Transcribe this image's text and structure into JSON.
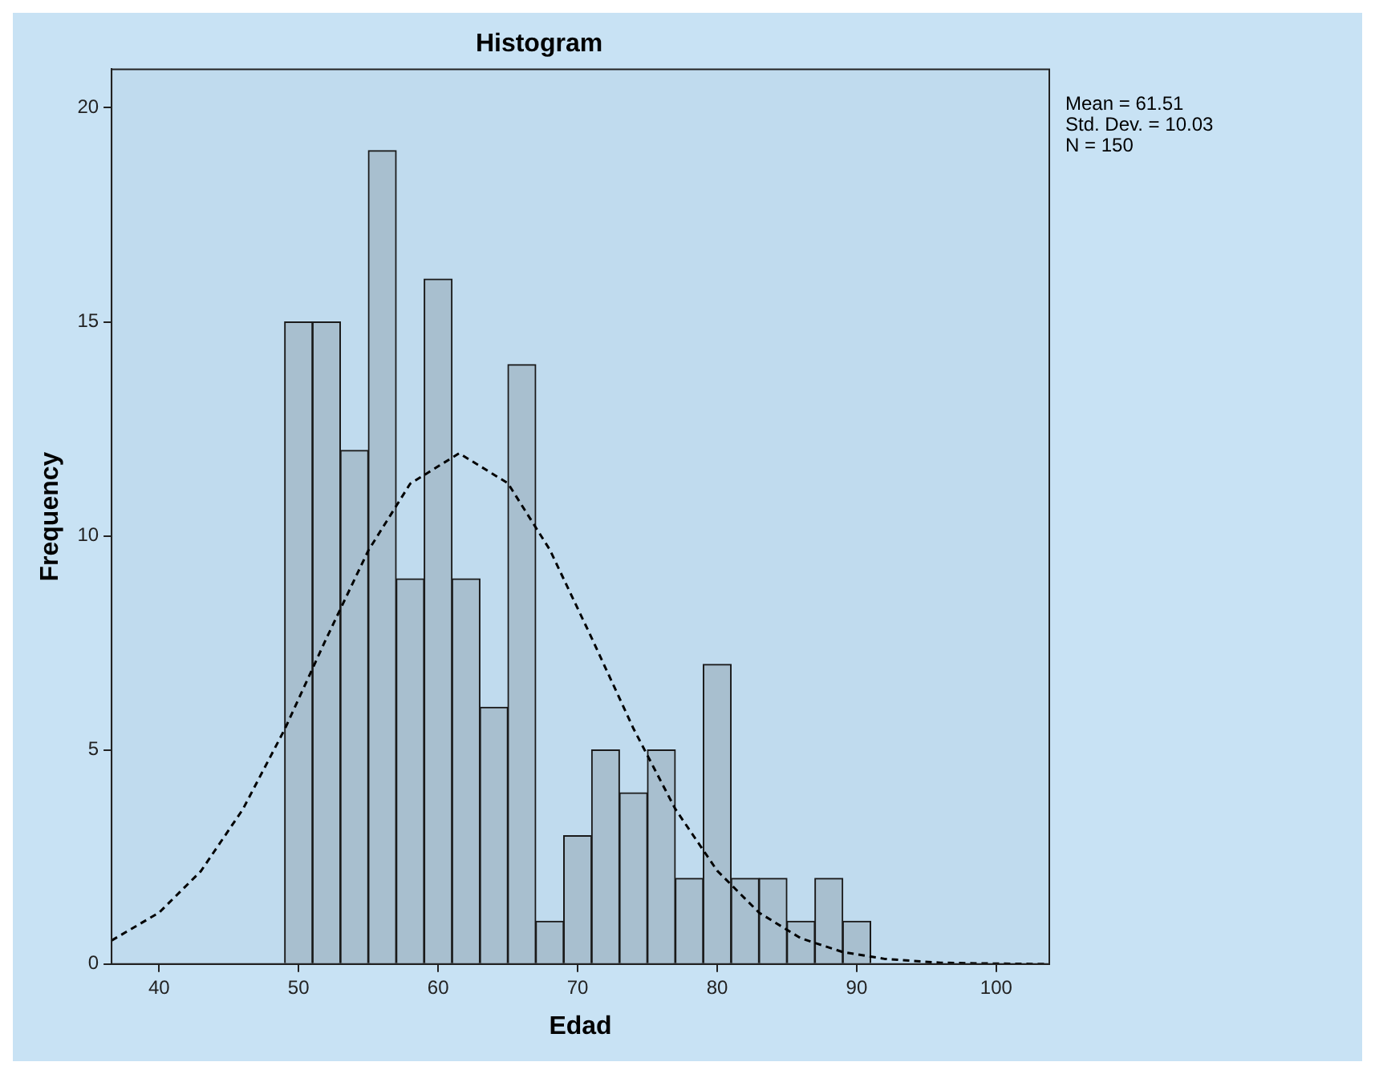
{
  "chart_data": {
    "type": "histogram",
    "title": "Histogram",
    "xlabel": "Edad",
    "ylabel": "Frequency",
    "bins": [
      49,
      51,
      53,
      55,
      57,
      59,
      61,
      63,
      65,
      67,
      69,
      71,
      73,
      75,
      77,
      79,
      81,
      83,
      85,
      87,
      89,
      91
    ],
    "values": [
      15,
      15,
      12,
      19,
      9,
      16,
      9,
      6,
      14,
      1,
      3,
      5,
      4,
      5,
      2,
      7,
      2,
      2,
      1,
      2,
      1
    ],
    "color": "#a8bfcf",
    "xlim": [
      36.6,
      103.8
    ],
    "xticks": [
      40,
      50,
      60,
      70,
      80,
      90,
      100
    ],
    "ylim": [
      0,
      20.9
    ],
    "yticks": [
      0,
      5,
      10,
      15,
      20
    ],
    "annotations": [
      "Mean = 61.51",
      "Std. Dev. = 10.03",
      "N = 150"
    ],
    "series": [
      {
        "type": "line",
        "color": "#000000",
        "line_style": "dashed",
        "marker": "none",
        "x": [
          36.6,
          40,
          43,
          46,
          49,
          52,
          55,
          58,
          61.51,
          65,
          68,
          71,
          74,
          77,
          80,
          83,
          86,
          89,
          92,
          96,
          100,
          103.8
        ],
        "values": [
          0.55,
          1.2,
          2.17,
          3.61,
          5.48,
          7.61,
          9.66,
          11.22,
          11.93,
          11.23,
          9.68,
          7.62,
          5.5,
          3.62,
          2.18,
          1.2,
          0.6,
          0.28,
          0.12,
          0.03,
          0.01,
          0
        ]
      }
    ]
  }
}
